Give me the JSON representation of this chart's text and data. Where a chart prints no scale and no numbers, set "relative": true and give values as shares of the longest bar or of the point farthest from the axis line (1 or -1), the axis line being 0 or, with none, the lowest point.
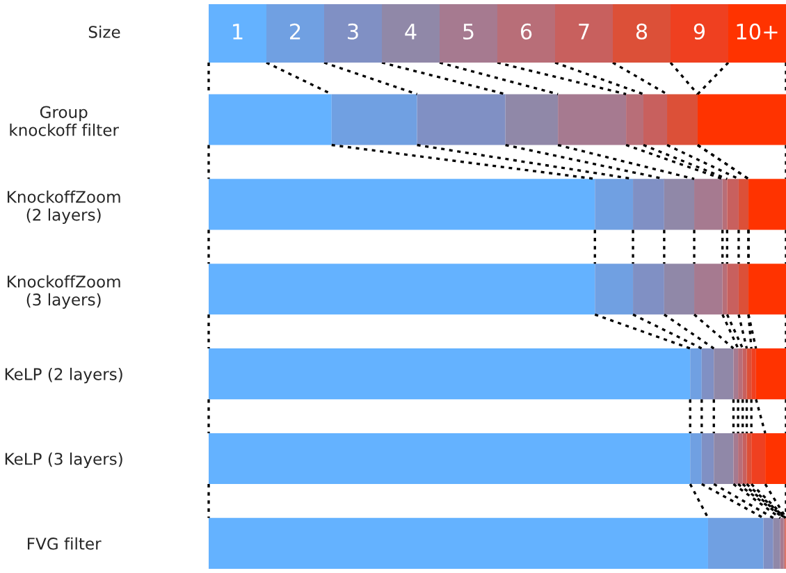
{
  "chart_data": {
    "type": "bar",
    "orientation": "horizontal",
    "stacked": true,
    "relative": true,
    "legend": "top",
    "legend_title": "Size",
    "categories": [
      "Group\nknockoff filter",
      "KnockoffZoom\n(2 layers)",
      "KnockoffZoom\n(3 layers)",
      "KeLP (2 layers)",
      "KeLP (3 layers)",
      "FVG filter"
    ],
    "series": [
      {
        "name": "1",
        "color": "#64b2ff",
        "values": [
          0.213,
          0.669,
          0.669,
          0.834,
          0.834,
          0.865
        ]
      },
      {
        "name": "2",
        "color": "#70a0e2",
        "values": [
          0.148,
          0.066,
          0.066,
          0.02,
          0.02,
          0.096
        ]
      },
      {
        "name": "3",
        "color": "#8090c4",
        "values": [
          0.153,
          0.054,
          0.054,
          0.021,
          0.021,
          0.017
        ]
      },
      {
        "name": "4",
        "color": "#9088a8",
        "values": [
          0.091,
          0.052,
          0.052,
          0.034,
          0.034,
          0.012
        ]
      },
      {
        "name": "5",
        "color": "#a67a90",
        "values": [
          0.118,
          0.049,
          0.049,
          0.008,
          0.008,
          0.006
        ]
      },
      {
        "name": "6",
        "color": "#b86e78",
        "values": [
          0.03,
          0.008,
          0.008,
          0.008,
          0.008,
          0.002
        ]
      },
      {
        "name": "7",
        "color": "#c8605e",
        "values": [
          0.041,
          0.02,
          0.02,
          0.007,
          0.007,
          0.001
        ]
      },
      {
        "name": "8",
        "color": "#dc5038",
        "values": [
          0.053,
          0.017,
          0.017,
          0.008,
          0.008,
          0.001
        ]
      },
      {
        "name": "9",
        "color": "#ef4020",
        "values": [
          0.0,
          0.0,
          0.0,
          0.008,
          0.024,
          0.0
        ]
      },
      {
        "name": "10+",
        "color": "#ff3300",
        "values": [
          0.153,
          0.065,
          0.065,
          0.052,
          0.036,
          0.0
        ]
      }
    ]
  }
}
